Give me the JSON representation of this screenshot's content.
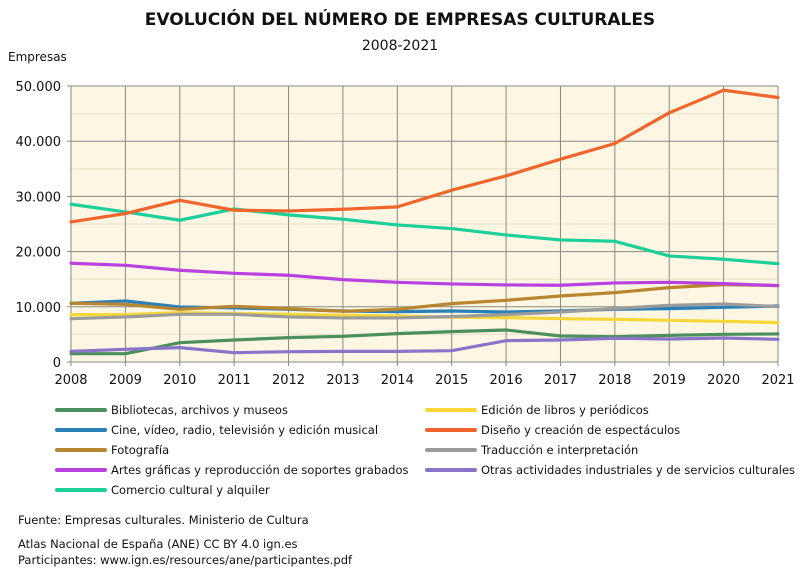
{
  "chart_data": {
    "type": "line",
    "title": "EVOLUCIÓN DEL NÚMERO DE EMPRESAS CULTURALES",
    "subtitle": "2008-2021",
    "ylabel": "Empresas",
    "xlabel": "",
    "ylim": [
      0,
      50000
    ],
    "yticks": [
      "0",
      "10.000",
      "20.000",
      "30.000",
      "40.000",
      "50.000"
    ],
    "ytick_values": [
      0,
      10000,
      20000,
      30000,
      40000,
      50000
    ],
    "grid": true,
    "legend_position": "bottom",
    "x": [
      "2008",
      "2009",
      "2010",
      "2011",
      "2012",
      "2013",
      "2014",
      "2015",
      "2016",
      "2017",
      "2018",
      "2019",
      "2020",
      "2021"
    ],
    "series": [
      {
        "name": "Bibliotecas, archivos y museos",
        "color": "#4b8f5e",
        "values": [
          1510,
          1510,
          3500,
          3990,
          4410,
          4650,
          5140,
          5500,
          5800,
          4710,
          4590,
          4830,
          5020,
          5080
        ]
      },
      {
        "name": "Cine, vídeo, radio, televisión y edición musical",
        "color": "#2b80b9",
        "values": [
          10630,
          11060,
          9970,
          9790,
          9550,
          9240,
          9120,
          9240,
          9060,
          9240,
          9550,
          9670,
          9910,
          10150
        ]
      },
      {
        "name": "Fotografía",
        "color": "#b8862f",
        "values": [
          10630,
          10450,
          9550,
          10090,
          9670,
          9180,
          9550,
          10570,
          11180,
          11960,
          12570,
          13470,
          14020,
          13840
        ]
      },
      {
        "name": "Artes gráficas y reproducción de soportes grabados",
        "color": "#b941e0",
        "values": [
          17890,
          17520,
          16620,
          16070,
          15710,
          14920,
          14440,
          14140,
          13960,
          13900,
          14320,
          14440,
          14200,
          13840
        ]
      },
      {
        "name": "Comercio cultural y alquiler",
        "color": "#1dcf98",
        "values": [
          28580,
          27190,
          25680,
          27730,
          26650,
          25860,
          24830,
          24170,
          23020,
          22110,
          21870,
          19210,
          18610,
          17820
        ]
      },
      {
        "name": "Edición de libros y periódicos",
        "color": "#f7d738",
        "values": [
          8580,
          8580,
          8940,
          8760,
          8640,
          8460,
          8340,
          8100,
          8040,
          7850,
          7730,
          7550,
          7370,
          7130
        ]
      },
      {
        "name": "Diseño y creación de espectáculos",
        "color": "#f0652b",
        "values": [
          25380,
          26890,
          29300,
          27490,
          27370,
          27670,
          28100,
          31120,
          33720,
          36740,
          39580,
          45140,
          49240,
          47920
        ]
      },
      {
        "name": "Traducción e interpretación",
        "color": "#9b9b9b",
        "values": [
          7850,
          8160,
          8640,
          8640,
          8160,
          7980,
          7980,
          8220,
          8580,
          9060,
          9670,
          10270,
          10510,
          10030
        ]
      },
      {
        "name": "Otras actividades industriales y de servicios culturales",
        "color": "#8a74c9",
        "values": [
          1930,
          2300,
          2600,
          1690,
          1870,
          1930,
          1930,
          2050,
          3870,
          3990,
          4290,
          4170,
          4350,
          4110
        ]
      }
    ]
  },
  "footer": {
    "source": "Fuente: Empresas culturales. Ministerio de Cultura",
    "credit": "Atlas Nacional de España (ANE) CC BY 4.0 ign.es",
    "participants": "Participantes: www.ign.es/resources/ane/participantes.pdf"
  }
}
